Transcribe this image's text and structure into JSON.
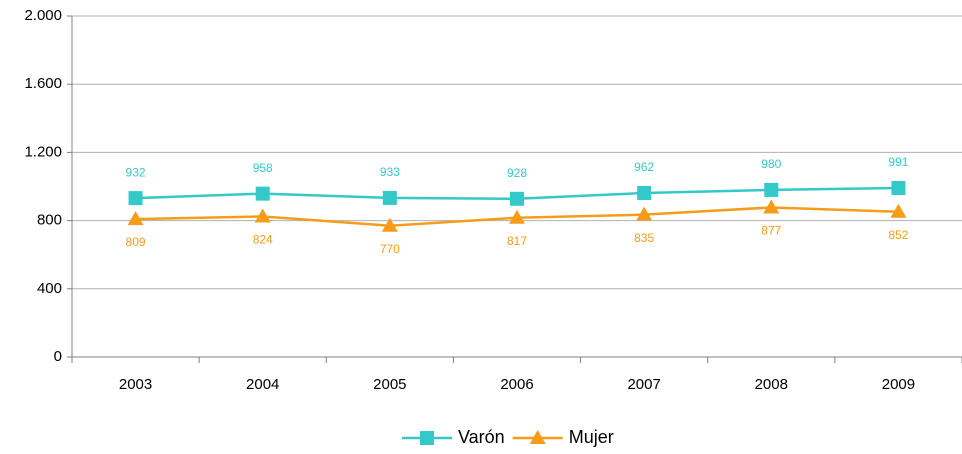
{
  "chart_data": {
    "type": "line",
    "categories": [
      "2003",
      "2004",
      "2005",
      "2006",
      "2007",
      "2008",
      "2009"
    ],
    "series": [
      {
        "name": "Varón",
        "color": "#33c9c9",
        "marker": "square",
        "label_position": "above",
        "values": [
          932,
          958,
          933,
          928,
          962,
          980,
          991
        ]
      },
      {
        "name": "Mujer",
        "color": "#f59c1a",
        "marker": "triangle",
        "label_position": "below",
        "values": [
          809,
          824,
          770,
          817,
          835,
          877,
          852
        ]
      }
    ],
    "ylim": [
      0,
      2000
    ],
    "yticks": [
      0,
      400,
      800,
      {
        "value": 1200,
        "label": "1.200"
      },
      {
        "value": 1600,
        "label": "1.600"
      },
      {
        "value": 2000,
        "label": "2.000"
      }
    ],
    "grid": true,
    "legend": "bottom"
  }
}
